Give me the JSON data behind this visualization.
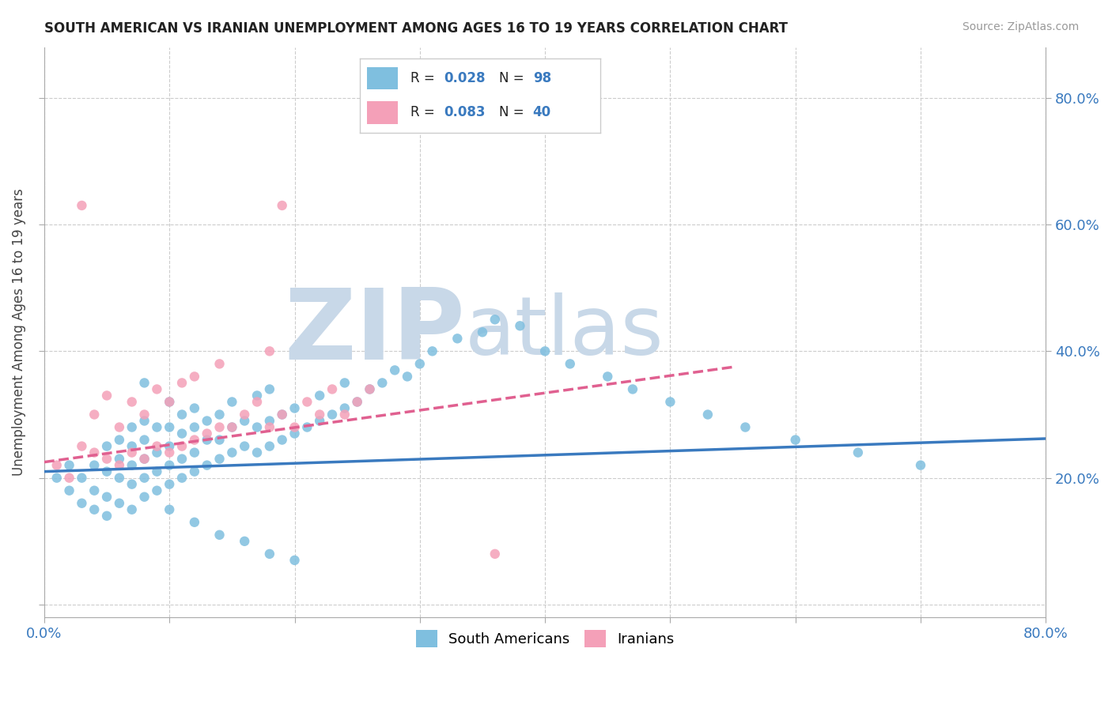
{
  "title": "SOUTH AMERICAN VS IRANIAN UNEMPLOYMENT AMONG AGES 16 TO 19 YEARS CORRELATION CHART",
  "source": "Source: ZipAtlas.com",
  "ylabel": "Unemployment Among Ages 16 to 19 years",
  "xlim": [
    0.0,
    0.8
  ],
  "ylim": [
    -0.02,
    0.88
  ],
  "color_blue": "#7fbfdf",
  "color_pink": "#f4a0b8",
  "color_blue_text": "#3a7abf",
  "color_trendline_blue": "#3a7abf",
  "color_trendline_pink": "#e06090",
  "watermark_color": "#c8d8e8",
  "background_color": "#ffffff",
  "grid_color": "#cccccc",
  "sa_x": [
    0.01,
    0.02,
    0.02,
    0.03,
    0.03,
    0.04,
    0.04,
    0.04,
    0.05,
    0.05,
    0.05,
    0.05,
    0.06,
    0.06,
    0.06,
    0.06,
    0.07,
    0.07,
    0.07,
    0.07,
    0.07,
    0.08,
    0.08,
    0.08,
    0.08,
    0.08,
    0.09,
    0.09,
    0.09,
    0.09,
    0.1,
    0.1,
    0.1,
    0.1,
    0.1,
    0.11,
    0.11,
    0.11,
    0.11,
    0.12,
    0.12,
    0.12,
    0.12,
    0.13,
    0.13,
    0.13,
    0.14,
    0.14,
    0.14,
    0.15,
    0.15,
    0.15,
    0.16,
    0.16,
    0.17,
    0.17,
    0.17,
    0.18,
    0.18,
    0.18,
    0.19,
    0.19,
    0.2,
    0.2,
    0.21,
    0.22,
    0.22,
    0.23,
    0.24,
    0.24,
    0.25,
    0.26,
    0.27,
    0.28,
    0.29,
    0.3,
    0.31,
    0.33,
    0.35,
    0.36,
    0.38,
    0.4,
    0.42,
    0.45,
    0.47,
    0.5,
    0.53,
    0.56,
    0.6,
    0.65,
    0.12,
    0.14,
    0.16,
    0.18,
    0.2,
    0.7,
    0.08,
    0.1
  ],
  "sa_y": [
    0.2,
    0.18,
    0.22,
    0.16,
    0.2,
    0.15,
    0.18,
    0.22,
    0.14,
    0.17,
    0.21,
    0.25,
    0.16,
    0.2,
    0.23,
    0.26,
    0.15,
    0.19,
    0.22,
    0.25,
    0.28,
    0.17,
    0.2,
    0.23,
    0.26,
    0.29,
    0.18,
    0.21,
    0.24,
    0.28,
    0.19,
    0.22,
    0.25,
    0.28,
    0.32,
    0.2,
    0.23,
    0.27,
    0.3,
    0.21,
    0.24,
    0.28,
    0.31,
    0.22,
    0.26,
    0.29,
    0.23,
    0.26,
    0.3,
    0.24,
    0.28,
    0.32,
    0.25,
    0.29,
    0.24,
    0.28,
    0.33,
    0.25,
    0.29,
    0.34,
    0.26,
    0.3,
    0.27,
    0.31,
    0.28,
    0.29,
    0.33,
    0.3,
    0.31,
    0.35,
    0.32,
    0.34,
    0.35,
    0.37,
    0.36,
    0.38,
    0.4,
    0.42,
    0.43,
    0.45,
    0.44,
    0.4,
    0.38,
    0.36,
    0.34,
    0.32,
    0.3,
    0.28,
    0.26,
    0.24,
    0.13,
    0.11,
    0.1,
    0.08,
    0.07,
    0.22,
    0.35,
    0.15
  ],
  "ir_x": [
    0.01,
    0.02,
    0.03,
    0.04,
    0.04,
    0.05,
    0.05,
    0.06,
    0.06,
    0.07,
    0.07,
    0.08,
    0.08,
    0.09,
    0.09,
    0.1,
    0.1,
    0.11,
    0.11,
    0.12,
    0.12,
    0.13,
    0.14,
    0.14,
    0.15,
    0.16,
    0.17,
    0.18,
    0.18,
    0.19,
    0.2,
    0.21,
    0.22,
    0.23,
    0.24,
    0.25,
    0.26,
    0.03,
    0.19,
    0.36
  ],
  "ir_y": [
    0.22,
    0.2,
    0.25,
    0.24,
    0.3,
    0.23,
    0.33,
    0.22,
    0.28,
    0.24,
    0.32,
    0.23,
    0.3,
    0.25,
    0.34,
    0.24,
    0.32,
    0.25,
    0.35,
    0.26,
    0.36,
    0.27,
    0.28,
    0.38,
    0.28,
    0.3,
    0.32,
    0.28,
    0.4,
    0.3,
    0.28,
    0.32,
    0.3,
    0.34,
    0.3,
    0.32,
    0.34,
    0.63,
    0.63,
    0.08
  ],
  "sa_trend_x": [
    0.0,
    0.8
  ],
  "sa_trend_y": [
    0.21,
    0.262
  ],
  "ir_trend_x": [
    0.0,
    0.55
  ],
  "ir_trend_y": [
    0.225,
    0.375
  ]
}
